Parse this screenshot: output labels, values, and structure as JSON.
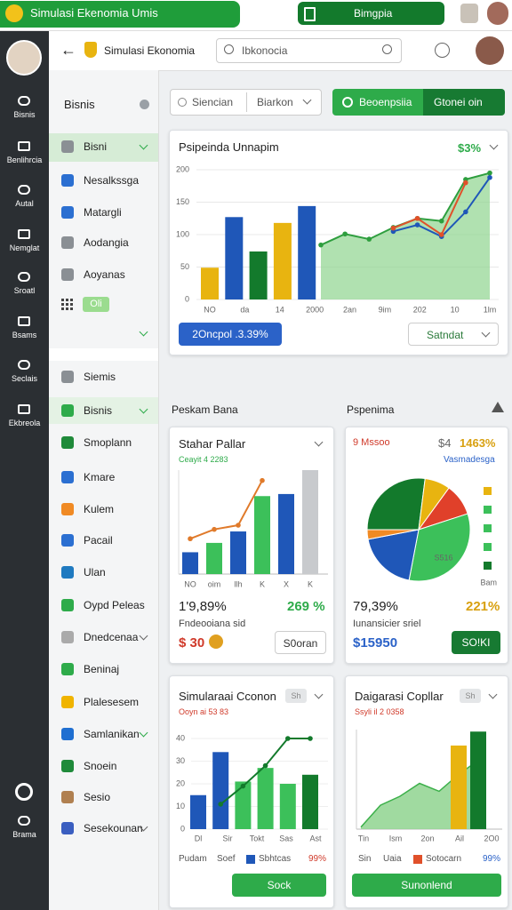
{
  "topbar": {
    "app_name": "Simulasi Ekenomia Umis",
    "center_tab": "Bimgpia"
  },
  "rail": [
    "Bisnis",
    "Benlihrcia",
    "Autal",
    "Nemglat",
    "Sroatl",
    "Bsams",
    "Seclais",
    "Ekbreola",
    "Brama"
  ],
  "header": {
    "title": "Simulasi Ekonomia",
    "search_placeholder": "Ibkonocia"
  },
  "nav": {
    "title": "Bisnis",
    "items": [
      "Bisni",
      "Nesalkssga",
      "Matargli",
      "Aodangia",
      "Aoyanas"
    ],
    "tag": "Oli",
    "section": "Siemis",
    "section_items": [
      "Bisnis",
      "Smoplann",
      "Kmare",
      "Kulem",
      "Pacail",
      "Ulan",
      "Oypd Peleas",
      "Dnedcenaa",
      "Beninaj",
      "Plalesesem",
      "Samlanikan",
      "Snoein",
      "Sesio",
      "Sesekounan"
    ]
  },
  "filters": {
    "select_1": "Siencian",
    "select_2": "Biarkon",
    "button_1": "Beoenpsiia",
    "button_2": "Gtonei oin"
  },
  "main_chart": {
    "type": "combo",
    "title": "Psipeinda Unnapim",
    "badge": "$3%",
    "ylim": [
      0,
      200
    ],
    "yticks": [
      0,
      50,
      100,
      150,
      200
    ],
    "x_labels": [
      "NO",
      "da",
      "14",
      "2000",
      "2an",
      "9im",
      "202",
      "10",
      "1lm"
    ],
    "bars": {
      "values": [
        49,
        127,
        74,
        118,
        144
      ],
      "colors": [
        "#e8b410",
        "#1f57b8",
        "#137a2c",
        "#e8b410",
        "#1f57b8"
      ]
    },
    "series": [
      {
        "color": "#2e9e3e",
        "area": true,
        "values": [
          84,
          101,
          93,
          111,
          125,
          121,
          185,
          195
        ]
      },
      {
        "color": "#1f57b8",
        "values": [
          null,
          null,
          null,
          105,
          115,
          97,
          135,
          188
        ]
      },
      {
        "color": "#e0502a",
        "values": [
          null,
          null,
          null,
          110,
          125,
          100,
          180,
          null
        ]
      }
    ],
    "button": "2Oncpol .3.39%",
    "dropdown": "Satndat"
  },
  "sections": [
    "Peskam Bana",
    "Pspenima"
  ],
  "card_1": {
    "type": "bar",
    "title": "Stahar Pallar",
    "subtitle": "Ceayit 4 2283",
    "ylim": [
      0,
      100
    ],
    "categories": [
      "NO",
      "oim",
      "llh",
      "K",
      "X",
      "K"
    ],
    "values": [
      21,
      30,
      41,
      75,
      77,
      100
    ],
    "colors": [
      "#1f57b8",
      "#3cc05a",
      "#1f57b8",
      "#3cc05a",
      "#1f57b8",
      "#c8cacd"
    ],
    "line": {
      "color": "#e07a2a",
      "values": [
        34,
        43,
        47,
        90,
        null,
        null
      ]
    },
    "stat": "1'9,89%",
    "stat_right": "269 %",
    "caption": "Fndeooiana sid",
    "amount": "$ 30",
    "button": "S0oran"
  },
  "card_2": {
    "type": "pie",
    "label": "9 Mssoo",
    "amount_prefix": "$4",
    "amount": "1463%",
    "link": "Vasmadesga",
    "values": [
      27,
      8,
      10,
      33,
      19,
      3
    ],
    "colors": [
      "#137a2c",
      "#e8b410",
      "#e0402a",
      "#3cc05a",
      "#1f57b8",
      "#f08a24"
    ],
    "slice_label": "S516",
    "legend_note": "Bam",
    "stat": "79,39%",
    "stat_right": "221%",
    "caption": "Iunansicier sriel",
    "amount_2": "$15950",
    "button": "SO!KI"
  },
  "card_3": {
    "type": "combo",
    "title": "Simularaai Cconon",
    "badge": "Sh",
    "subtitle": "Ooyn ai 53 83",
    "ylim": [
      0,
      40
    ],
    "yticks": [
      0,
      10,
      20,
      30,
      40
    ],
    "x_labels": [
      "Dl",
      "Sir",
      "Tokt",
      "Sas",
      "Ast"
    ],
    "values": [
      15,
      34,
      21,
      27,
      20,
      24
    ],
    "colors": [
      "#1f57b8",
      "#1f57b8",
      "#3cc05a",
      "#3cc05a",
      "#3cc05a",
      "#137a2c"
    ],
    "line": {
      "color": "#137a2c",
      "values": [
        null,
        11,
        19,
        28,
        40,
        40
      ]
    },
    "legend": [
      "Pudam",
      "Soef",
      "Sbhtcas",
      "99%"
    ],
    "button": "Sock"
  },
  "card_4": {
    "type": "area",
    "title": "Daigarasi Copllar",
    "badge": "Sh",
    "subtitle": "Ssyli il 2 0358",
    "ylim": [
      0,
      100
    ],
    "x_labels": [
      "Tin",
      "Ism",
      "2on",
      "Ail",
      "2O0"
    ],
    "area": {
      "color": "#3cb04a",
      "values": [
        2,
        24,
        33,
        46,
        38,
        55,
        69
      ]
    },
    "bars": {
      "values": [
        null,
        null,
        null,
        null,
        null,
        84,
        98
      ],
      "colors": [
        null,
        null,
        null,
        null,
        null,
        "#e8b410",
        "#137a2c"
      ]
    },
    "legend": [
      "Sin",
      "Uaia",
      "Sotocarn",
      "99%"
    ],
    "button": "Sunonlend"
  }
}
